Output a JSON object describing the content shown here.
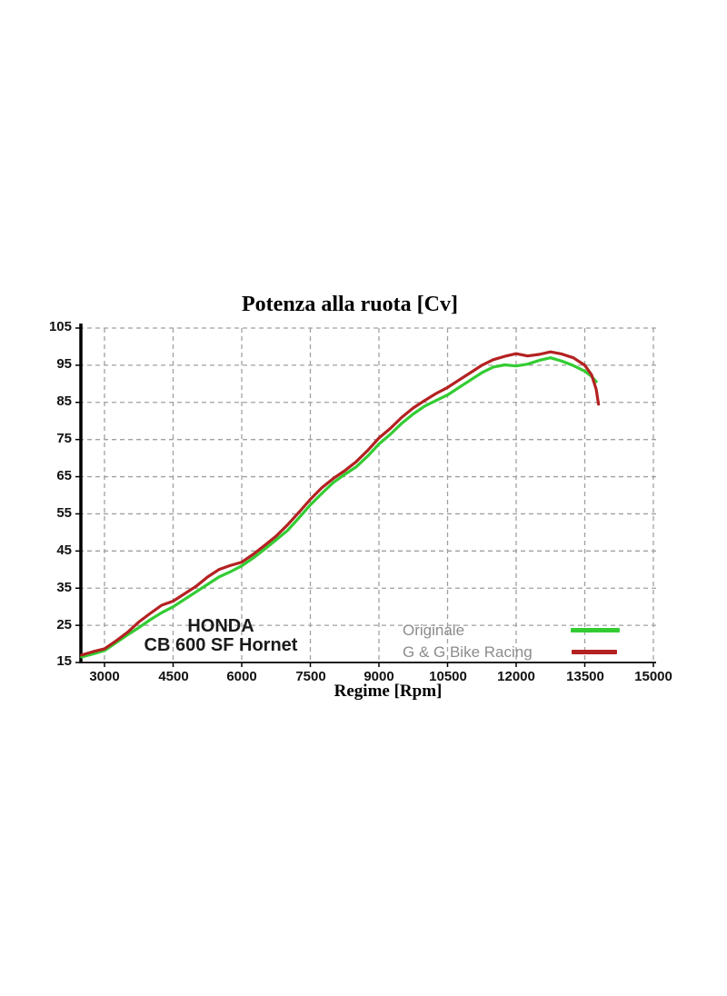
{
  "chart_data": {
    "type": "line",
    "title": "Potenza alla ruota [Cv]",
    "xlabel": "Regime [Rpm]",
    "ylabel": "",
    "xlim": [
      3000,
      15000
    ],
    "ylim": [
      15,
      105
    ],
    "grid": "dashed-gray-both-axes",
    "legend_position": "inside-bottom-right",
    "xticks": [
      "3000",
      "4500",
      "6000",
      "7500",
      "9000",
      "10500",
      "12000",
      "13500",
      "15000"
    ],
    "yticks": [
      "105",
      "95",
      "85",
      "75",
      "65",
      "55",
      "45",
      "35",
      "25",
      "15"
    ],
    "series": [
      {
        "name": "Originale",
        "color": "#33cc33",
        "points": [
          [
            2500,
            16.5
          ],
          [
            2750,
            17.3
          ],
          [
            3000,
            18.2
          ],
          [
            3250,
            20.3
          ],
          [
            3500,
            22.4
          ],
          [
            3750,
            24.4
          ],
          [
            4000,
            26.5
          ],
          [
            4250,
            28.4
          ],
          [
            4500,
            30
          ],
          [
            4750,
            32
          ],
          [
            5000,
            34
          ],
          [
            5250,
            36
          ],
          [
            5500,
            38
          ],
          [
            5750,
            39.4
          ],
          [
            6000,
            41
          ],
          [
            6250,
            43.1
          ],
          [
            6500,
            45.5
          ],
          [
            6750,
            48
          ],
          [
            7000,
            50.5
          ],
          [
            7250,
            53.9
          ],
          [
            7500,
            57.4
          ],
          [
            7750,
            60.5
          ],
          [
            8000,
            63.4
          ],
          [
            8250,
            65.6
          ],
          [
            8500,
            67.6
          ],
          [
            8750,
            70.5
          ],
          [
            9000,
            73.8
          ],
          [
            9250,
            76.4
          ],
          [
            9500,
            79.4
          ],
          [
            9750,
            81.9
          ],
          [
            10000,
            84
          ],
          [
            10250,
            85.5
          ],
          [
            10500,
            87
          ],
          [
            10750,
            89
          ],
          [
            11000,
            91
          ],
          [
            11250,
            93
          ],
          [
            11500,
            94.5
          ],
          [
            11750,
            95.1
          ],
          [
            12000,
            94.8
          ],
          [
            12250,
            95.3
          ],
          [
            12500,
            96.3
          ],
          [
            12750,
            97
          ],
          [
            13000,
            96.1
          ],
          [
            13250,
            94.9
          ],
          [
            13500,
            93.4
          ],
          [
            13650,
            92
          ],
          [
            13750,
            90.6
          ]
        ]
      },
      {
        "name": "G & G Bike Racing",
        "color": "#b42121",
        "points": [
          [
            2500,
            17
          ],
          [
            2750,
            17.9
          ],
          [
            3000,
            18.7
          ],
          [
            3250,
            20.8
          ],
          [
            3500,
            23.1
          ],
          [
            3750,
            25.9
          ],
          [
            4000,
            28.2
          ],
          [
            4250,
            30.4
          ],
          [
            4500,
            31.5
          ],
          [
            4750,
            33.5
          ],
          [
            5000,
            35.5
          ],
          [
            5250,
            38
          ],
          [
            5500,
            40
          ],
          [
            5750,
            41.1
          ],
          [
            6000,
            42
          ],
          [
            6250,
            44.1
          ],
          [
            6500,
            46.5
          ],
          [
            6750,
            49
          ],
          [
            7000,
            52
          ],
          [
            7250,
            55.4
          ],
          [
            7500,
            58.9
          ],
          [
            7750,
            62
          ],
          [
            8000,
            64.5
          ],
          [
            8250,
            66.6
          ],
          [
            8500,
            69
          ],
          [
            8750,
            72
          ],
          [
            9000,
            75.4
          ],
          [
            9250,
            78
          ],
          [
            9500,
            81
          ],
          [
            9750,
            83.5
          ],
          [
            10000,
            85.5
          ],
          [
            10250,
            87.4
          ],
          [
            10500,
            89
          ],
          [
            10750,
            91
          ],
          [
            11000,
            93
          ],
          [
            11250,
            95
          ],
          [
            11500,
            96.5
          ],
          [
            11750,
            97.4
          ],
          [
            12000,
            98.1
          ],
          [
            12250,
            97.5
          ],
          [
            12500,
            97.9
          ],
          [
            12750,
            98.6
          ],
          [
            13000,
            98
          ],
          [
            13250,
            97
          ],
          [
            13500,
            95
          ],
          [
            13650,
            92.4
          ],
          [
            13750,
            88.5
          ],
          [
            13800,
            84.5
          ]
        ]
      }
    ]
  },
  "branding": {
    "line1": "HONDA",
    "line2": "CB 600 SF Hornet"
  },
  "colors": {
    "grid": "#a0a0a0",
    "axis": "#000000",
    "legend_text": "#8c8c8c",
    "series_original": "#33cc33",
    "series_gg": "#b42121"
  }
}
